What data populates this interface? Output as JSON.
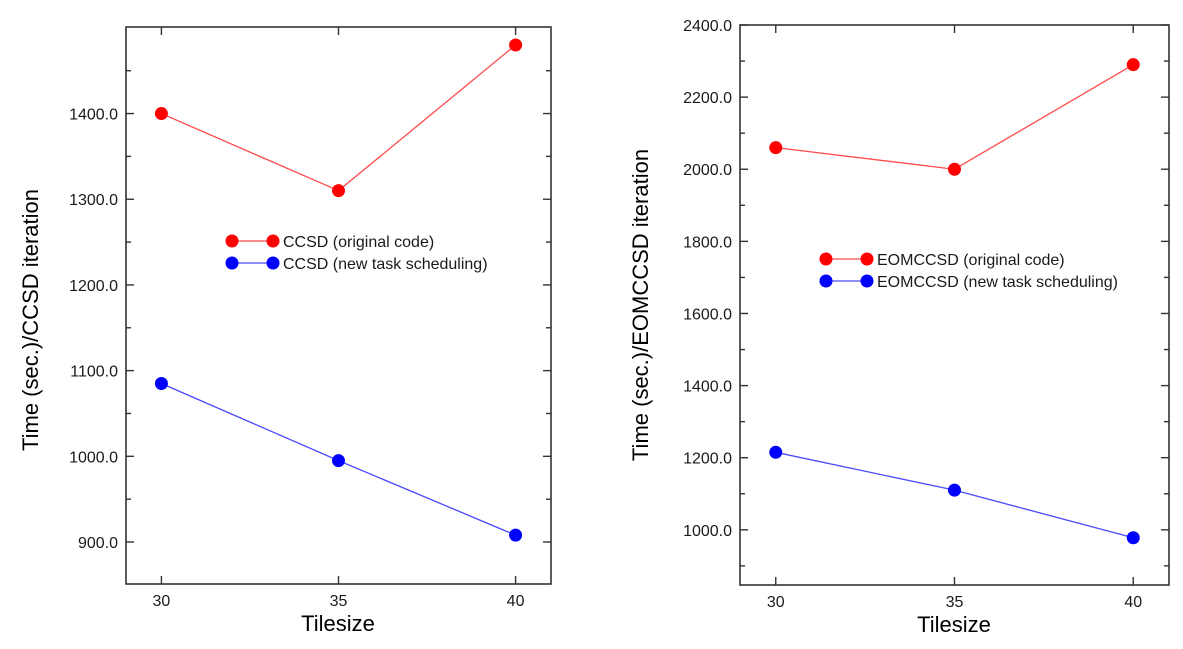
{
  "chart_data": [
    {
      "type": "line",
      "id": "left",
      "title": "",
      "xlabel": "Tilesize",
      "ylabel": "Time (sec.)/CCSD iteration",
      "x": [
        30,
        35,
        40
      ],
      "xticks": [
        30,
        35,
        40
      ],
      "xtick_labels": [
        "30",
        "35",
        "40"
      ],
      "xlim": [
        29.0,
        41.0
      ],
      "ylim": [
        851,
        1501
      ],
      "yticks": [
        900,
        1000,
        1100,
        1200,
        1300,
        1400
      ],
      "ytick_labels": [
        "900.0",
        "1000.0",
        "1100.0",
        "1200.0",
        "1300.0",
        "1400.0"
      ],
      "yminor_ticks": [
        950,
        1050,
        1150,
        1250,
        1350,
        1450
      ],
      "grid": false,
      "legend_position": "center",
      "series": [
        {
          "name": "CCSD (original code)",
          "values": [
            1400,
            1310,
            1480
          ],
          "color": "#ff0000",
          "line_color": "#ff4a4a"
        },
        {
          "name": "CCSD (new task scheduling)",
          "values": [
            1085,
            995,
            908
          ],
          "color": "#0000ff",
          "line_color": "#4a4aff"
        }
      ]
    },
    {
      "type": "line",
      "id": "right",
      "title": "",
      "xlabel": "Tilesize",
      "ylabel": "Time (sec.)/EOMCCSD iteration",
      "x": [
        30,
        35,
        40
      ],
      "xticks": [
        30,
        35,
        40
      ],
      "xtick_labels": [
        "30",
        "35",
        "40"
      ],
      "xlim": [
        29.0,
        41.0
      ],
      "ylim": [
        847,
        2400
      ],
      "yticks": [
        1000,
        1200,
        1400,
        1600,
        1800,
        2000,
        2200,
        2400
      ],
      "ytick_labels": [
        "1000.0",
        "1200.0",
        "1400.0",
        "1600.0",
        "1800.0",
        "2000.0",
        "2200.0",
        "2400.0"
      ],
      "yminor_ticks": [
        900,
        1100,
        1300,
        1500,
        1700,
        1900,
        2100,
        2300
      ],
      "grid": false,
      "legend_position": "center",
      "series": [
        {
          "name": "EOMCCSD (original code)",
          "values": [
            2060,
            2000,
            2290
          ],
          "color": "#ff0000",
          "line_color": "#ff4a4a"
        },
        {
          "name": "EOMCCSD (new task scheduling)",
          "values": [
            1215,
            1110,
            978
          ],
          "color": "#0000ff",
          "line_color": "#4a4aff"
        }
      ]
    }
  ]
}
